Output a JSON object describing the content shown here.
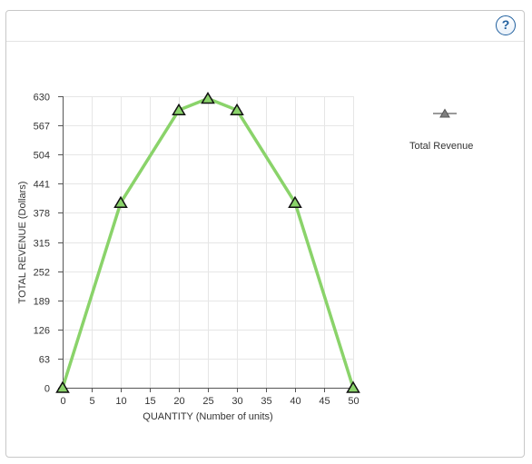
{
  "help": {
    "label": "?"
  },
  "chart_data": {
    "type": "line",
    "x": [
      0,
      10,
      20,
      25,
      30,
      40,
      50
    ],
    "series": [
      {
        "name": "Total Revenue",
        "values": [
          0,
          400,
          600,
          625,
          600,
          400,
          0
        ]
      }
    ],
    "xlabel": "QUANTITY (Number of units)",
    "ylabel": "TOTAL REVENUE (Dollars)",
    "xlim": [
      0,
      50
    ],
    "ylim": [
      0,
      630
    ],
    "xticks": [
      0,
      5,
      10,
      15,
      20,
      25,
      30,
      35,
      40,
      45,
      50
    ],
    "yticks": [
      0,
      63,
      126,
      189,
      252,
      315,
      378,
      441,
      504,
      567,
      630
    ],
    "grid": true,
    "legend_position": "right",
    "marker": "triangle",
    "colors": {
      "line": "#8ad36a",
      "marker_fill": "#8ad36a",
      "marker_edge": "#111111",
      "grid": "#e6e6e6",
      "legend_marker": "#7f7f7f"
    }
  }
}
